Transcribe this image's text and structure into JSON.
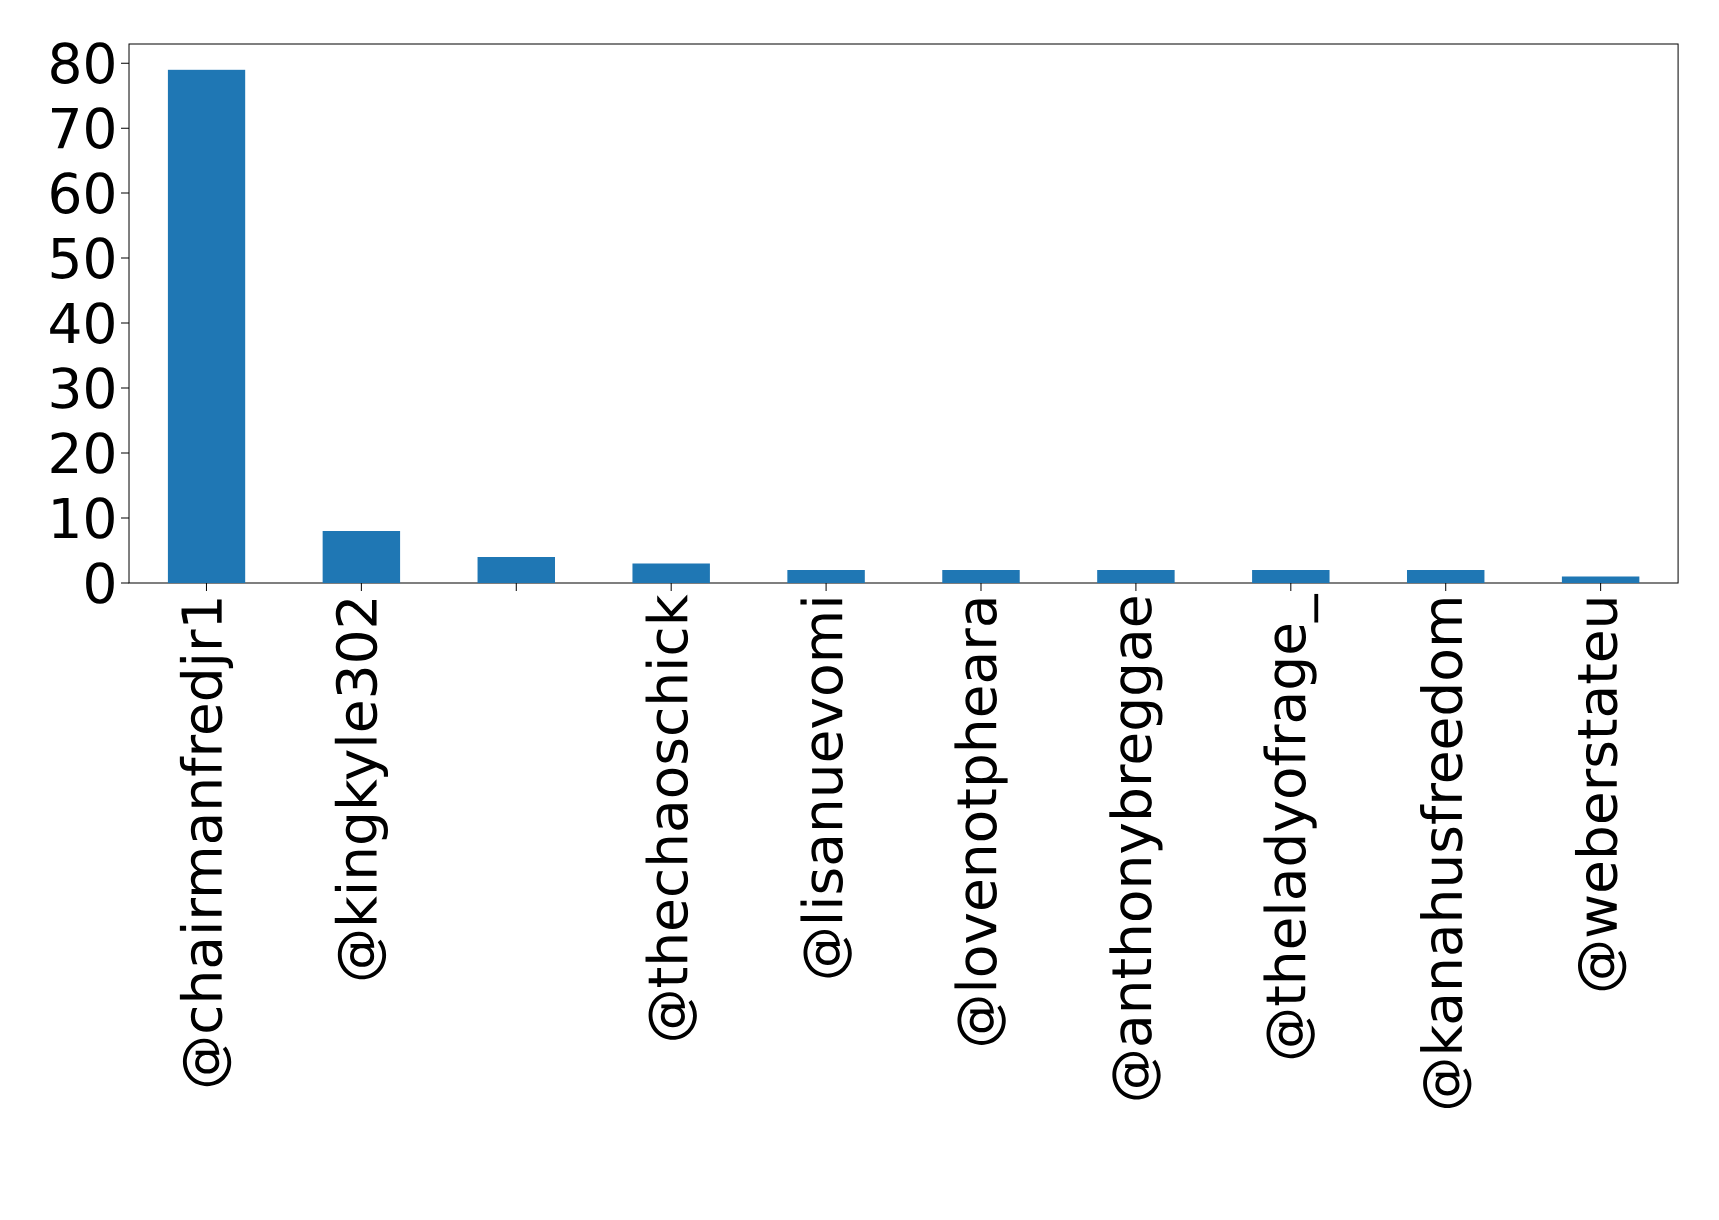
{
  "chart_data": {
    "type": "bar",
    "categories": [
      "@chairmanfredjr1",
      "@kingkyle302",
      null,
      "@thechaoschick",
      "@lisanuevomi",
      "@lovenotpheara",
      "@anthonybreggae",
      "@theladyofrage_",
      "@kanahusfreedom",
      "@weberstateu"
    ],
    "values": [
      79,
      8,
      4,
      3,
      2,
      2,
      2,
      2,
      2,
      1
    ],
    "color": "#1f77b4",
    "ylim": [
      0,
      82.95
    ],
    "yticks": [
      0,
      10,
      20,
      30,
      40,
      50,
      60,
      70,
      80
    ]
  }
}
